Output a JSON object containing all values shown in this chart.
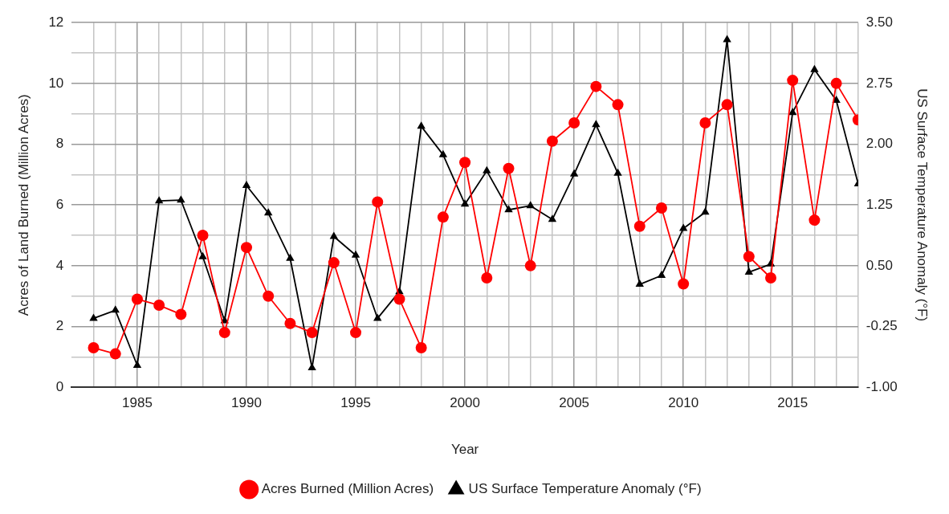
{
  "chart_data": {
    "type": "line",
    "xlabel": "Year",
    "ylabel": "Acres of Land Burned (Million Acres)",
    "y2label": "US Surface Temperature Anomaly (°F)",
    "x": [
      1983,
      1984,
      1985,
      1986,
      1987,
      1988,
      1989,
      1990,
      1991,
      1992,
      1993,
      1994,
      1995,
      1996,
      1997,
      1998,
      1999,
      2000,
      2001,
      2002,
      2003,
      2004,
      2005,
      2006,
      2007,
      2008,
      2009,
      2010,
      2011,
      2012,
      2013,
      2014,
      2015,
      2016,
      2017,
      2018
    ],
    "series": [
      {
        "name": "Acres Burned (Million Acres)",
        "color": "#ff0000",
        "marker": "circle",
        "values": [
          1.3,
          1.1,
          2.9,
          2.7,
          2.4,
          5.0,
          1.8,
          4.6,
          3.0,
          2.1,
          1.8,
          4.1,
          1.8,
          6.1,
          2.9,
          1.3,
          5.6,
          7.4,
          3.6,
          7.2,
          4.0,
          8.1,
          8.7,
          9.9,
          9.3,
          5.3,
          5.9,
          3.4,
          8.7,
          9.3,
          4.3,
          3.6,
          10.1,
          5.5,
          10.0,
          8.8
        ]
      },
      {
        "name": "US Surface Temperature Anomaly (°F)",
        "color": "#000000",
        "marker": "triangle",
        "axis": "y2",
        "values": [
          -0.15,
          -0.05,
          -0.73,
          1.3,
          1.31,
          0.61,
          -0.18,
          1.49,
          1.15,
          0.59,
          -0.76,
          0.86,
          0.63,
          -0.15,
          0.18,
          2.22,
          1.87,
          1.26,
          1.67,
          1.19,
          1.24,
          1.07,
          1.63,
          2.24,
          1.64,
          0.27,
          0.38,
          0.96,
          1.16,
          3.29,
          0.42,
          0.52,
          2.39,
          2.92,
          2.54,
          1.51
        ]
      }
    ],
    "xlim": [
      1982,
      2018
    ],
    "xticks": [
      {
        "value": 1983,
        "label": null
      },
      {
        "value": 1984,
        "label": null
      },
      1985,
      {
        "value": 1986,
        "label": null
      },
      {
        "value": 1987,
        "label": null
      },
      {
        "value": 1988,
        "label": null
      },
      {
        "value": 1989,
        "label": null
      },
      1990,
      {
        "value": 1991,
        "label": null
      },
      {
        "value": 1992,
        "label": null
      },
      {
        "value": 1993,
        "label": null
      },
      {
        "value": 1994,
        "label": null
      },
      1995,
      {
        "value": 1996,
        "label": null
      },
      {
        "value": 1997,
        "label": null
      },
      {
        "value": 1998,
        "label": null
      },
      {
        "value": 1999,
        "label": null
      },
      2000,
      {
        "value": 2001,
        "label": null
      },
      {
        "value": 2002,
        "label": null
      },
      {
        "value": 2003,
        "label": null
      },
      {
        "value": 2004,
        "label": null
      },
      2005,
      {
        "value": 2006,
        "label": null
      },
      {
        "value": 2007,
        "label": null
      },
      {
        "value": 2008,
        "label": null
      },
      {
        "value": 2009,
        "label": null
      },
      2010,
      {
        "value": 2011,
        "label": null
      },
      {
        "value": 2012,
        "label": null
      },
      {
        "value": 2013,
        "label": null
      },
      {
        "value": 2014,
        "label": null
      },
      2015,
      {
        "value": 2016,
        "label": null
      },
      {
        "value": 2017,
        "label": null
      },
      {
        "value": 2018,
        "label": null
      }
    ],
    "ylim": [
      0,
      12
    ],
    "yticks": [
      0,
      {
        "value": 1,
        "label": null
      },
      2,
      {
        "value": 3,
        "label": null
      },
      4,
      {
        "value": 5,
        "label": null
      },
      6,
      {
        "value": 7,
        "label": null
      },
      8,
      {
        "value": 9,
        "label": null
      },
      10,
      {
        "value": 11,
        "label": null
      },
      12
    ],
    "y2lim": [
      -1,
      3.5
    ],
    "y2ticks": [
      {
        "value": -1,
        "label": "-1.00"
      },
      {
        "value": -0.25,
        "label": "-0.25"
      },
      {
        "value": 0.5,
        "label": "0.50"
      },
      {
        "value": 1.25,
        "label": "1.25"
      },
      {
        "value": 2,
        "label": "2.00"
      },
      {
        "value": 2.75,
        "label": "2.75"
      },
      {
        "value": 3.5,
        "label": "3.50"
      }
    ],
    "grid": true,
    "legend": "bottom",
    "line_style": "solid"
  }
}
